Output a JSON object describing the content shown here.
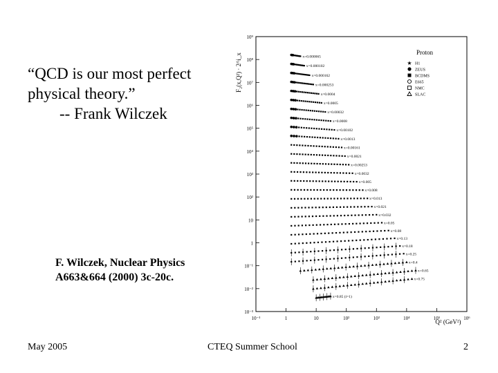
{
  "quote": {
    "line1": "“QCD is our most perfect",
    "line2": "physical theory.”",
    "line3": "-- Frank Wilczek"
  },
  "citation": {
    "line1": "F. Wilczek, Nuclear Physics",
    "line2": "A663&664 (2000) 3c-20c."
  },
  "footer": {
    "left": "May 2005",
    "center": "CTEQ Summer School",
    "right": "2"
  },
  "chart_data": {
    "type": "scatter",
    "title": "Proton",
    "ylabel": "F₂(x,Q²) · 2^i_x",
    "xlabel": "Q² (GeV²)",
    "xscale": "log",
    "yscale": "log",
    "xlim": [
      0.1,
      1000000
    ],
    "ylim": [
      0.001,
      1000000000
    ],
    "xticks": [
      "10⁻¹",
      "1",
      "10",
      "10²",
      "10³",
      "10⁴",
      "10⁵",
      "10⁶"
    ],
    "yticks": [
      "10⁹",
      "10⁸",
      "10⁷",
      "10⁶",
      "10⁵",
      "10⁴",
      "10³",
      "10²",
      "10",
      "1",
      "10⁻¹",
      "10⁻²",
      "10⁻³"
    ],
    "legend_position": "top-right",
    "legend": [
      {
        "label": "H1",
        "marker": "star"
      },
      {
        "label": "ZEUS",
        "marker": "filled-circle"
      },
      {
        "label": "BCDMS",
        "marker": "filled-square"
      },
      {
        "label": "E665",
        "marker": "open-circle"
      },
      {
        "label": "NMC",
        "marker": "open-square"
      },
      {
        "label": "SLAC",
        "marker": "open-triangle"
      }
    ],
    "bins": [
      {
        "label": "x=0.000065",
        "q2": [
          1.5,
          3
        ]
      },
      {
        "label": "x=0.000102",
        "q2": [
          1.5,
          4
        ]
      },
      {
        "label": "x=0.000162",
        "q2": [
          1.5,
          6
        ]
      },
      {
        "label": "x=0.000253",
        "q2": [
          1.5,
          8
        ]
      },
      {
        "label": "x=0.0004",
        "q2": [
          1.5,
          12
        ]
      },
      {
        "label": "x=0.0005",
        "q2": [
          1.5,
          15
        ]
      },
      {
        "label": "x=0.00032",
        "q2": [
          1.5,
          20
        ]
      },
      {
        "label": "x=0.0008",
        "q2": [
          1.5,
          30
        ]
      },
      {
        "label": "x=0.00102",
        "q2": [
          1.5,
          40
        ]
      },
      {
        "label": "x=0.0013",
        "q2": [
          1.5,
          55
        ]
      },
      {
        "label": "x=0.00161",
        "q2": [
          1.5,
          70
        ]
      },
      {
        "label": "x=0.0021",
        "q2": [
          1.5,
          90
        ]
      },
      {
        "label": "x=0.00253",
        "q2": [
          1.5,
          120
        ]
      },
      {
        "label": "x=0.0032",
        "q2": [
          1.5,
          160
        ]
      },
      {
        "label": "x=0.005",
        "q2": [
          1.5,
          220
        ]
      },
      {
        "label": "x=0.008",
        "q2": [
          1.5,
          350
        ]
      },
      {
        "label": "x=0.013",
        "q2": [
          1.5,
          500
        ]
      },
      {
        "label": "x=0.021",
        "q2": [
          1.5,
          700
        ]
      },
      {
        "label": "x=0.032",
        "q2": [
          1.5,
          1000
        ]
      },
      {
        "label": "x=0.05",
        "q2": [
          1.5,
          1500
        ]
      },
      {
        "label": "x=0.08",
        "q2": [
          1.5,
          2500
        ]
      },
      {
        "label": "x=0.13",
        "q2": [
          1.5,
          4000
        ]
      },
      {
        "label": "x=0.18",
        "q2": [
          1.5,
          6000
        ]
      },
      {
        "label": "x=0.25",
        "q2": [
          1.5,
          8000
        ]
      },
      {
        "label": "x=0.4",
        "q2": [
          3,
          10000
        ]
      },
      {
        "label": "x=0.65",
        "q2": [
          8,
          20000
        ]
      },
      {
        "label": "x=0.75",
        "q2": [
          8,
          15000
        ]
      },
      {
        "label": "x=0.85 (i=1)",
        "q2": [
          10,
          30
        ]
      }
    ]
  }
}
